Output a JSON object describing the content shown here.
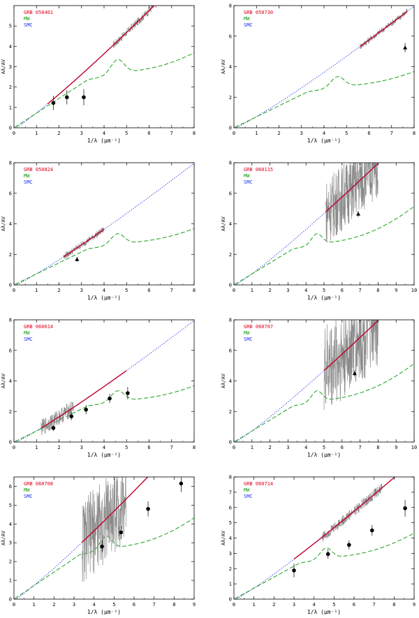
{
  "page_title": "GRB afterglow extinction curves (Aλ/AV vs 1/λ)",
  "colors": {
    "grb": "#e0001b",
    "mw": "#18a018",
    "smc": "#1e2ee0",
    "fit": "#c0002a",
    "spectrum": "#8a8a8a",
    "points": "#000000",
    "axis": "#000000"
  },
  "chart_data": [
    {
      "type": "line",
      "title": "GRB 050401",
      "legend": [
        "GRB 050401",
        "MW",
        "SMC"
      ],
      "legend_position": "top-left",
      "xlabel": "1/λ (μm⁻¹)",
      "ylabel": "Aλ/AV",
      "xlim": [
        0,
        8
      ],
      "ylim": [
        0,
        6
      ],
      "xticks": [
        0,
        1,
        2,
        3,
        4,
        5,
        6,
        7,
        8
      ],
      "yticks": [
        0,
        1,
        2,
        3,
        4,
        5
      ],
      "xtick_labels": [
        "0",
        "1",
        "2",
        "3",
        "4",
        "5",
        "6",
        "7",
        "8"
      ],
      "ytick_labels": [
        "0",
        "1",
        "2",
        "3",
        "4",
        "5"
      ],
      "spectrum_range": [
        4.4,
        7.8
      ],
      "spectrum_noise": 0.2,
      "fit_range": [
        1.5,
        7.8
      ],
      "points": [
        {
          "x": 1.75,
          "y": 1.22,
          "err": 0.35
        },
        {
          "x": 2.35,
          "y": 1.5,
          "err": 0.35
        },
        {
          "x": 3.1,
          "y": 1.5,
          "err": 0.4
        }
      ]
    },
    {
      "type": "line",
      "title": "GRB 050730",
      "legend": [
        "GRB 050730",
        "MW",
        "SMC"
      ],
      "legend_position": "top-left",
      "xlabel": "1/λ (μm⁻¹)",
      "ylabel": "Aλ/AV",
      "xlim": [
        0,
        8
      ],
      "ylim": [
        0,
        8
      ],
      "xticks": [
        0,
        1,
        2,
        3,
        4,
        5,
        6,
        7,
        8
      ],
      "yticks": [
        0,
        2,
        4,
        6,
        8
      ],
      "xtick_labels": [
        "0",
        "1",
        "2",
        "3",
        "4",
        "5",
        "6",
        "7",
        "8"
      ],
      "ytick_labels": [
        "0",
        "2",
        "4",
        "6",
        "8"
      ],
      "spectrum_range": [
        5.6,
        7.7
      ],
      "spectrum_noise": 0.22,
      "fit_range": [
        5.6,
        7.7
      ],
      "points": [
        {
          "x": 7.6,
          "y": 5.25,
          "err": 0.3,
          "marker": "triangle"
        }
      ]
    },
    {
      "type": "line",
      "title": "GRB 050824",
      "legend": [
        "GRB 050824",
        "MW",
        "SMC"
      ],
      "legend_position": "top-left",
      "xlabel": "1/λ (μm⁻¹)",
      "ylabel": "Aλ/AV",
      "xlim": [
        0,
        8
      ],
      "ylim": [
        0,
        8
      ],
      "xticks": [
        0,
        1,
        2,
        3,
        4,
        5,
        6,
        7,
        8
      ],
      "yticks": [
        0,
        2,
        4,
        6,
        8
      ],
      "xtick_labels": [
        "0",
        "1",
        "2",
        "3",
        "4",
        "5",
        "6",
        "7",
        "8"
      ],
      "ytick_labels": [
        "0",
        "2",
        "4",
        "6",
        "8"
      ],
      "spectrum_range": [
        2.2,
        4.0
      ],
      "spectrum_noise": 0.22,
      "fit_range": [
        2.2,
        4.0
      ],
      "points": [
        {
          "x": 2.8,
          "y": 1.68,
          "err": 0.15,
          "marker": "triangle"
        }
      ]
    },
    {
      "type": "line",
      "title": "GRB 060115",
      "legend": [
        "GRB 060115",
        "MW",
        "SMC"
      ],
      "legend_position": "top-left",
      "xlabel": "1/λ (μm⁻¹)",
      "ylabel": "Aλ/AV",
      "xlim": [
        0,
        10
      ],
      "ylim": [
        0,
        8
      ],
      "xticks": [
        0,
        1,
        2,
        3,
        4,
        5,
        6,
        7,
        8,
        9,
        10
      ],
      "yticks": [
        0,
        2,
        4,
        6,
        8
      ],
      "xtick_labels": [
        "0",
        "1",
        "2",
        "3",
        "4",
        "5",
        "6",
        "7",
        "8",
        "9",
        "10"
      ],
      "ytick_labels": [
        "0",
        "2",
        "4",
        "6",
        "8"
      ],
      "spectrum_range": [
        5.1,
        8.0
      ],
      "spectrum_noise": 2.2,
      "fit_range": [
        5.1,
        8.0
      ],
      "points": [
        {
          "x": 6.9,
          "y": 4.65,
          "err": 0.2,
          "marker": "triangle"
        }
      ]
    },
    {
      "type": "line",
      "title": "GRB 060614",
      "legend": [
        "GRB 060614",
        "MW",
        "SMC"
      ],
      "legend_position": "top-left",
      "xlabel": "1/λ (μm⁻¹)",
      "ylabel": "Aλ/AV",
      "xlim": [
        0,
        8
      ],
      "ylim": [
        0,
        8
      ],
      "xticks": [
        0,
        1,
        2,
        3,
        4,
        5,
        6,
        7,
        8
      ],
      "yticks": [
        0,
        2,
        4,
        6,
        8
      ],
      "xtick_labels": [
        "0",
        "1",
        "2",
        "3",
        "4",
        "5",
        "6",
        "7",
        "8"
      ],
      "ytick_labels": [
        "0",
        "2",
        "4",
        "6",
        "8"
      ],
      "spectrum_range": [
        1.2,
        2.65
      ],
      "spectrum_noise": 0.55,
      "fit_range": [
        1.2,
        5.0
      ],
      "points": [
        {
          "x": 1.75,
          "y": 0.92,
          "err": 0.2
        },
        {
          "x": 2.55,
          "y": 1.68,
          "err": 0.25
        },
        {
          "x": 3.2,
          "y": 2.12,
          "err": 0.3
        },
        {
          "x": 4.25,
          "y": 2.85,
          "err": 0.3
        },
        {
          "x": 5.05,
          "y": 3.2,
          "err": 0.4
        }
      ]
    },
    {
      "type": "line",
      "title": "GRB 060707",
      "legend": [
        "GRB 060707",
        "MW",
        "SMC"
      ],
      "legend_position": "top-left",
      "xlabel": "1/λ (μm⁻¹)",
      "ylabel": "Aλ/AV",
      "xlim": [
        0,
        10
      ],
      "ylim": [
        0,
        8
      ],
      "xticks": [
        0,
        1,
        2,
        3,
        4,
        5,
        6,
        7,
        8,
        9,
        10
      ],
      "yticks": [
        0,
        2,
        4,
        6,
        8
      ],
      "xtick_labels": [
        "0",
        "1",
        "2",
        "3",
        "4",
        "5",
        "6",
        "7",
        "8",
        "9",
        "10"
      ],
      "ytick_labels": [
        "0",
        "2",
        "4",
        "6",
        "8"
      ],
      "spectrum_range": [
        5.0,
        8.0
      ],
      "spectrum_noise": 3.0,
      "fit_range": [
        5.0,
        8.0
      ],
      "points": [
        {
          "x": 6.7,
          "y": 4.5,
          "err": 0.2,
          "marker": "triangle"
        }
      ]
    },
    {
      "type": "line",
      "title": "GRB 060708",
      "legend": [
        "GRB 060708",
        "MW",
        "SMC"
      ],
      "legend_position": "top-left",
      "xlabel": "1/λ (μm⁻¹)",
      "ylabel": "Aλ/AV",
      "xlim": [
        0,
        9
      ],
      "ylim": [
        0,
        6.5
      ],
      "xticks": [
        0,
        1,
        2,
        3,
        4,
        5,
        6,
        7,
        8,
        9
      ],
      "yticks": [
        0,
        1,
        2,
        3,
        4,
        5,
        6
      ],
      "xtick_labels": [
        "0",
        "1",
        "2",
        "3",
        "4",
        "5",
        "6",
        "7",
        "8",
        "9"
      ],
      "ytick_labels": [
        "0",
        "1",
        "2",
        "3",
        "4",
        "5",
        "6"
      ],
      "spectrum_range": [
        3.4,
        5.6
      ],
      "spectrum_noise": 2.3,
      "fit_range": [
        3.4,
        8.4
      ],
      "points": [
        {
          "x": 4.4,
          "y": 2.8,
          "err": 0.3
        },
        {
          "x": 5.35,
          "y": 3.55,
          "err": 0.35
        },
        {
          "x": 6.7,
          "y": 4.8,
          "err": 0.4
        },
        {
          "x": 8.35,
          "y": 6.15,
          "err": 0.45
        }
      ]
    },
    {
      "type": "line",
      "title": "GRB 060714",
      "legend": [
        "GRB 060714",
        "MW",
        "SMC"
      ],
      "legend_position": "top-left",
      "xlabel": "1/λ (μm⁻¹)",
      "ylabel": "Aλ/AV",
      "xlim": [
        0,
        9
      ],
      "ylim": [
        0,
        8
      ],
      "xticks": [
        0,
        1,
        2,
        3,
        4,
        5,
        6,
        7,
        8,
        9
      ],
      "yticks": [
        0,
        1,
        2,
        3,
        4,
        5,
        6,
        7,
        8
      ],
      "xtick_labels": [
        "0",
        "1",
        "2",
        "3",
        "4",
        "5",
        "6",
        "7",
        "8",
        "9"
      ],
      "ytick_labels": [
        "0",
        "1",
        "2",
        "3",
        "4",
        "5",
        "6",
        "7",
        "8"
      ],
      "spectrum_range": [
        4.4,
        7.4
      ],
      "spectrum_noise": 0.35,
      "fit_range": [
        3.0,
        8.6
      ],
      "points": [
        {
          "x": 3.0,
          "y": 1.88,
          "err": 0.45
        },
        {
          "x": 4.7,
          "y": 2.95,
          "err": 0.3
        },
        {
          "x": 5.75,
          "y": 3.55,
          "err": 0.3
        },
        {
          "x": 6.9,
          "y": 4.5,
          "err": 0.35
        },
        {
          "x": 8.55,
          "y": 5.95,
          "err": 0.55
        }
      ]
    }
  ]
}
